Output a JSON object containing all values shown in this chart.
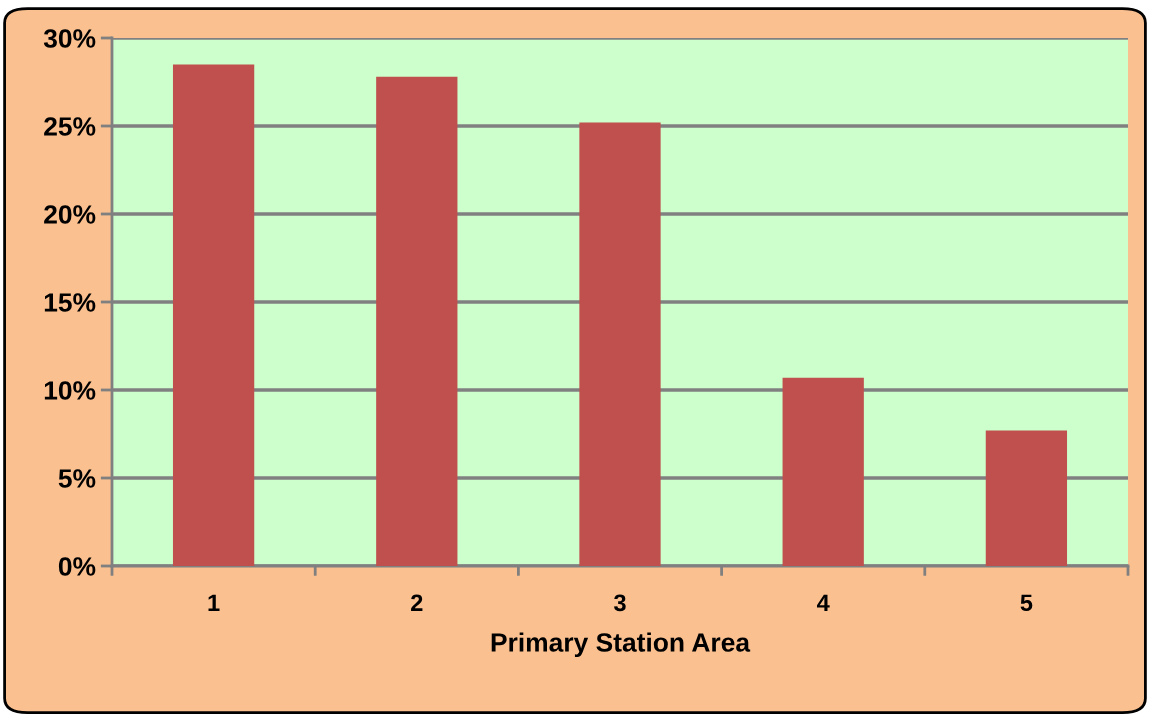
{
  "chart_data": {
    "type": "bar",
    "xlabel": "Primary Station Area",
    "categories": [
      "1",
      "2",
      "3",
      "4",
      "5"
    ],
    "values": [
      28.5,
      27.8,
      25.2,
      10.7,
      7.7
    ],
    "color": "#c0504d",
    "ylim": [
      0,
      30
    ],
    "yticks": [
      {
        "value": 0,
        "label": "0%"
      },
      {
        "value": 5,
        "label": "5%"
      },
      {
        "value": 10,
        "label": "10%"
      },
      {
        "value": 15,
        "label": "15%"
      },
      {
        "value": 20,
        "label": "20%"
      },
      {
        "value": 25,
        "label": "25%"
      },
      {
        "value": 30,
        "label": "30%"
      }
    ],
    "grid": "y"
  }
}
